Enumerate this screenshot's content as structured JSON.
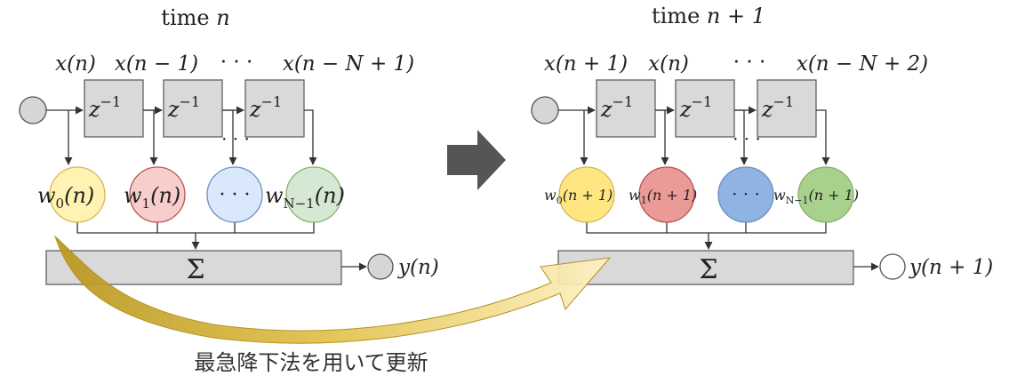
{
  "colors": {
    "box_fill": "#d9d9d9",
    "box_stroke": "#555555",
    "input_circle": "#d6d6d6",
    "weight0": "#fff2b3",
    "weight0_stroke": "#d6b656",
    "weight1": "#f8cecc",
    "weight1_stroke": "#b85450",
    "weight2": "#dae8fc",
    "weight2_stroke": "#6c8ebf",
    "weight3": "#d5e8d4",
    "weight3_stroke": "#82b366",
    "weight0_next": "#ffe680",
    "weight1_next": "#ea9a97",
    "weight2_next": "#8fb3e3",
    "weight3_next": "#a9d18e",
    "arrow_big": "#555555",
    "update_arrow": "#c9a825"
  },
  "left": {
    "title_prefix": "time ",
    "title_var": "n",
    "taps": [
      "x(n)",
      "x(n − 1)",
      "· · ·",
      "x(n − N + 1)"
    ],
    "delay": "z",
    "delay_exp": "−1",
    "dots": "· · ·",
    "weights": [
      {
        "sym": "w",
        "sub": "0",
        "arg": "(n)"
      },
      {
        "sym": "w",
        "sub": "1",
        "arg": "(n)"
      },
      {
        "sym": "· · ·",
        "sub": "",
        "arg": ""
      },
      {
        "sym": "w",
        "sub": "N−1",
        "arg": "(n)"
      }
    ],
    "sum": "Σ",
    "output": "y(n)"
  },
  "right": {
    "title_prefix": "time ",
    "title_var": "n + 1",
    "taps": [
      "x(n + 1)",
      "x(n)",
      "· · ·",
      "x(n − N + 2)"
    ],
    "delay": "z",
    "delay_exp": "−1",
    "dots": "· · ·",
    "weights": [
      {
        "sym": "w",
        "sub": "0",
        "arg": "(n + 1)"
      },
      {
        "sym": "w",
        "sub": "1",
        "arg": "(n + 1)"
      },
      {
        "sym": "· · ·",
        "sub": "",
        "arg": ""
      },
      {
        "sym": "w",
        "sub": "N−1",
        "arg": "(n + 1)"
      }
    ],
    "sum": "Σ",
    "output": "y(n + 1)"
  },
  "update_caption": "最急降下法を用いて更新"
}
